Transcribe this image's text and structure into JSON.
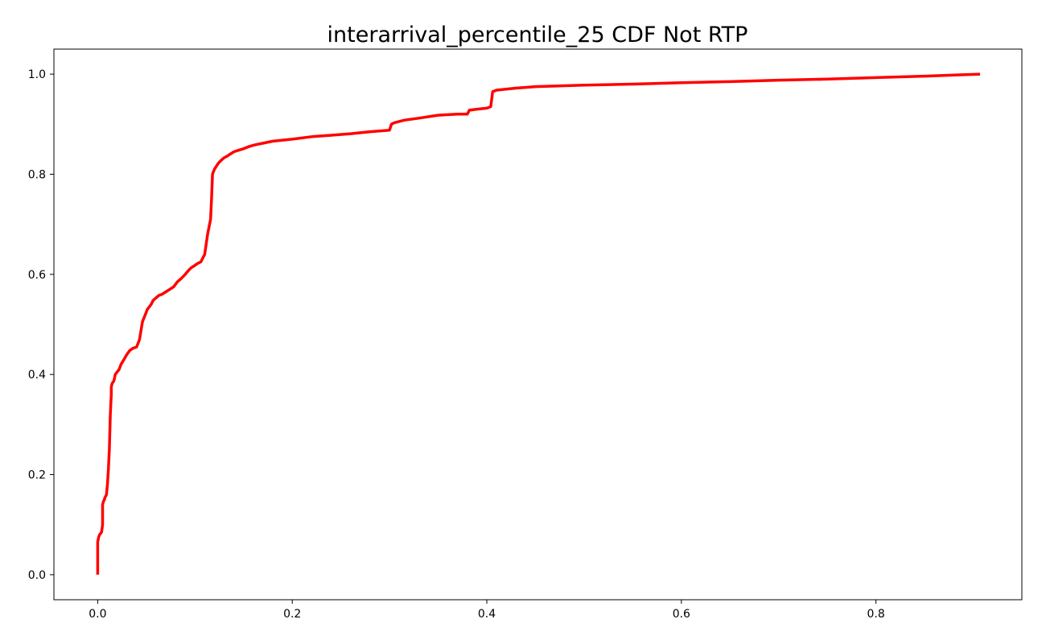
{
  "chart_data": {
    "type": "line",
    "title": "interarrival_percentile_25 CDF Not RTP",
    "xlabel": "",
    "ylabel": "",
    "xlim": [
      -0.045,
      0.95
    ],
    "ylim": [
      -0.05,
      1.05
    ],
    "xticks": [
      0.0,
      0.2,
      0.4,
      0.6,
      0.8
    ],
    "xtick_labels": [
      "0.0",
      "0.2",
      "0.4",
      "0.6",
      "0.8"
    ],
    "yticks": [
      0.0,
      0.2,
      0.4,
      0.6,
      0.8,
      1.0
    ],
    "ytick_labels": [
      "0.0",
      "0.2",
      "0.4",
      "0.6",
      "0.8",
      "1.0"
    ],
    "grid": false,
    "series": [
      {
        "color": "#ff0000",
        "x": [
          0.0,
          0.0,
          0.001,
          0.002,
          0.004,
          0.005,
          0.005,
          0.006,
          0.007,
          0.007,
          0.009,
          0.01,
          0.011,
          0.012,
          0.013,
          0.014,
          0.014,
          0.015,
          0.016,
          0.017,
          0.018,
          0.02,
          0.022,
          0.024,
          0.027,
          0.03,
          0.033,
          0.036,
          0.04,
          0.043,
          0.046,
          0.048,
          0.049,
          0.05,
          0.051,
          0.053,
          0.055,
          0.057,
          0.06,
          0.063,
          0.066,
          0.07,
          0.074,
          0.078,
          0.082,
          0.086,
          0.09,
          0.093,
          0.096,
          0.1,
          0.103,
          0.106,
          0.11,
          0.113,
          0.116,
          0.117,
          0.118,
          0.119,
          0.12,
          0.121,
          0.122,
          0.124,
          0.127,
          0.13,
          0.133,
          0.136,
          0.14,
          0.145,
          0.15,
          0.155,
          0.16,
          0.165,
          0.17,
          0.18,
          0.2,
          0.22,
          0.24,
          0.26,
          0.28,
          0.3,
          0.302,
          0.305,
          0.315,
          0.33,
          0.35,
          0.37,
          0.38,
          0.382,
          0.39,
          0.4,
          0.404,
          0.406,
          0.41,
          0.43,
          0.45,
          0.5,
          0.55,
          0.6,
          0.65,
          0.7,
          0.75,
          0.8,
          0.85,
          0.88,
          0.907
        ],
        "y": [
          0.0,
          0.065,
          0.075,
          0.08,
          0.085,
          0.1,
          0.14,
          0.147,
          0.15,
          0.152,
          0.16,
          0.18,
          0.21,
          0.25,
          0.32,
          0.36,
          0.375,
          0.383,
          0.385,
          0.39,
          0.4,
          0.405,
          0.41,
          0.42,
          0.43,
          0.44,
          0.448,
          0.452,
          0.455,
          0.47,
          0.505,
          0.515,
          0.52,
          0.525,
          0.53,
          0.535,
          0.54,
          0.548,
          0.553,
          0.558,
          0.56,
          0.565,
          0.57,
          0.575,
          0.585,
          0.592,
          0.6,
          0.607,
          0.613,
          0.618,
          0.622,
          0.625,
          0.64,
          0.68,
          0.71,
          0.75,
          0.8,
          0.805,
          0.81,
          0.813,
          0.816,
          0.822,
          0.828,
          0.833,
          0.836,
          0.84,
          0.845,
          0.848,
          0.851,
          0.855,
          0.858,
          0.86,
          0.862,
          0.866,
          0.87,
          0.875,
          0.878,
          0.881,
          0.885,
          0.888,
          0.9,
          0.903,
          0.908,
          0.912,
          0.918,
          0.92,
          0.92,
          0.928,
          0.93,
          0.932,
          0.935,
          0.965,
          0.968,
          0.972,
          0.975,
          0.978,
          0.98,
          0.983,
          0.985,
          0.988,
          0.99,
          0.993,
          0.996,
          0.998,
          1.0
        ]
      }
    ]
  }
}
